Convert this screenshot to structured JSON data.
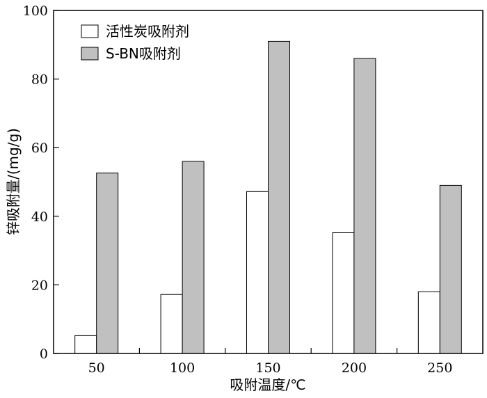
{
  "chart_data": {
    "type": "bar",
    "categories": [
      "50",
      "100",
      "150",
      "200",
      "250"
    ],
    "series": [
      {
        "name": "活性炭吸附剂",
        "values": [
          5.2,
          17.2,
          47.2,
          35.2,
          18.0
        ],
        "color": "#ffffff"
      },
      {
        "name": "S-BN吸附剂",
        "values": [
          52.6,
          56.0,
          91.0,
          86.0,
          49.0
        ],
        "color": "#c0c0c0"
      }
    ],
    "xlabel": "吸附温度/℃",
    "ylabel": "锌吸附量/(mg/g)",
    "ylim": [
      0,
      100
    ],
    "yticks": [
      "0",
      "20",
      "40",
      "60",
      "80",
      "100"
    ],
    "grid": false,
    "legend_position": "top-left"
  }
}
